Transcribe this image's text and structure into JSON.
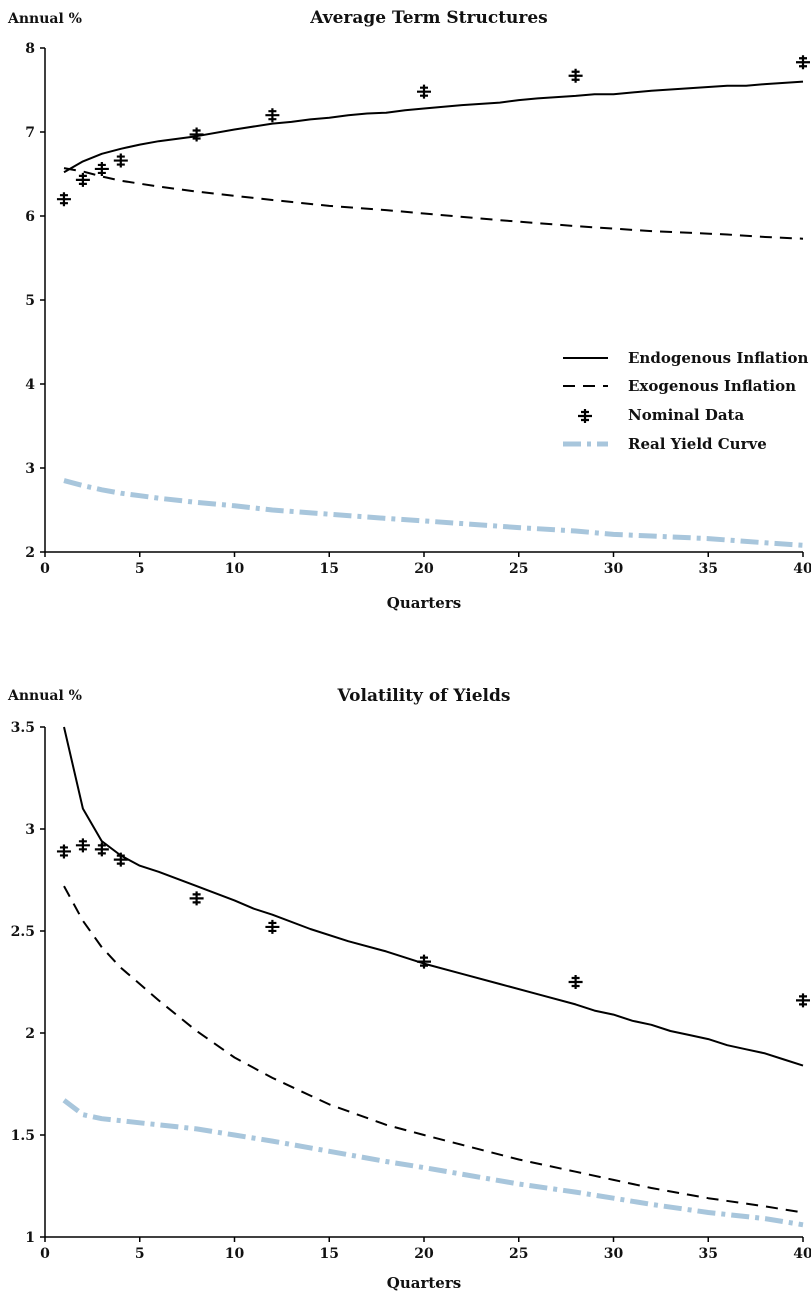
{
  "colors": {
    "ink": "#000000",
    "real_curve": "#a8c6dc"
  },
  "chart_data": [
    {
      "type": "line",
      "title": "Average Term Structures",
      "ylabel": "Annual %",
      "xlabel": "Quarters",
      "xlim": [
        0,
        40
      ],
      "ylim": [
        2,
        8
      ],
      "xticks": [
        "0",
        "5",
        "10",
        "15",
        "20",
        "25",
        "30",
        "35",
        "40"
      ],
      "yticks": [
        "2",
        "3",
        "4",
        "5",
        "6",
        "7",
        "8"
      ],
      "grid": false,
      "legend_position": "right",
      "series": [
        {
          "name": "Endogenous Inflation",
          "style": "solid",
          "x": [
            1,
            2,
            3,
            4,
            5,
            6,
            7,
            8,
            10,
            12,
            13,
            14,
            15,
            16,
            17,
            18,
            19,
            20,
            22,
            24,
            25,
            26,
            28,
            29,
            30,
            32,
            34,
            36,
            37,
            38,
            40
          ],
          "y": [
            6.52,
            6.65,
            6.74,
            6.8,
            6.85,
            6.89,
            6.92,
            6.95,
            7.03,
            7.1,
            7.12,
            7.15,
            7.17,
            7.2,
            7.22,
            7.23,
            7.26,
            7.28,
            7.32,
            7.35,
            7.38,
            7.4,
            7.43,
            7.45,
            7.45,
            7.49,
            7.52,
            7.55,
            7.55,
            7.57,
            7.6
          ]
        },
        {
          "name": "Exogenous Inflation",
          "style": "dashed",
          "x": [
            1,
            2,
            3,
            4,
            6,
            8,
            10,
            12,
            15,
            18,
            20,
            24,
            28,
            32,
            36,
            38,
            40
          ],
          "y": [
            6.57,
            6.53,
            6.47,
            6.42,
            6.35,
            6.29,
            6.24,
            6.19,
            6.12,
            6.07,
            6.03,
            5.95,
            5.88,
            5.82,
            5.78,
            5.75,
            5.73
          ]
        },
        {
          "name": "Nominal Data",
          "style": "markers",
          "x": [
            1,
            2,
            3,
            4,
            8,
            12,
            20,
            28,
            40
          ],
          "y": [
            6.2,
            6.43,
            6.56,
            6.66,
            6.97,
            7.2,
            7.48,
            7.67,
            7.83
          ]
        },
        {
          "name": "Real Yield Curve",
          "style": "dashdot",
          "x": [
            1,
            2,
            3,
            4,
            5,
            6,
            8,
            10,
            12,
            15,
            18,
            20,
            25,
            28,
            30,
            32,
            35,
            38,
            40
          ],
          "y": [
            2.85,
            2.79,
            2.74,
            2.7,
            2.67,
            2.64,
            2.59,
            2.55,
            2.5,
            2.45,
            2.4,
            2.37,
            2.29,
            2.25,
            2.21,
            2.19,
            2.16,
            2.11,
            2.08
          ]
        }
      ]
    },
    {
      "type": "line",
      "title": "Volatility of Yields",
      "ylabel": "Annual %",
      "xlabel": "Quarters",
      "xlim": [
        0,
        40
      ],
      "ylim": [
        1,
        3.5
      ],
      "xticks": [
        "0",
        "5",
        "10",
        "15",
        "20",
        "25",
        "30",
        "35",
        "40"
      ],
      "yticks": [
        "1",
        "1.5",
        "2",
        "2.5",
        "3",
        "3.5"
      ],
      "grid": false,
      "series": [
        {
          "style": "solid",
          "x": [
            1,
            2,
            3,
            4,
            5,
            6,
            8,
            10,
            11,
            12,
            14,
            16,
            18,
            20,
            22,
            24,
            26,
            28,
            29,
            30,
            31,
            32,
            33,
            34,
            35,
            36,
            37,
            38,
            39,
            40
          ],
          "y": [
            3.5,
            3.1,
            2.94,
            2.87,
            2.82,
            2.79,
            2.72,
            2.65,
            2.61,
            2.58,
            2.51,
            2.45,
            2.4,
            2.34,
            2.29,
            2.24,
            2.19,
            2.14,
            2.11,
            2.09,
            2.06,
            2.04,
            2.01,
            1.99,
            1.97,
            1.94,
            1.92,
            1.9,
            1.87,
            1.84
          ]
        },
        {
          "style": "dashed",
          "x": [
            1,
            2,
            3,
            4,
            5,
            6,
            8,
            10,
            12,
            15,
            18,
            20,
            25,
            28,
            30,
            32,
            35,
            38,
            40
          ],
          "y": [
            2.72,
            2.55,
            2.42,
            2.32,
            2.24,
            2.16,
            2.01,
            1.88,
            1.78,
            1.65,
            1.55,
            1.5,
            1.38,
            1.32,
            1.28,
            1.24,
            1.19,
            1.15,
            1.12
          ]
        },
        {
          "style": "markers",
          "x": [
            1,
            2,
            3,
            4,
            8,
            12,
            20,
            28,
            40
          ],
          "y": [
            2.89,
            2.92,
            2.9,
            2.85,
            2.66,
            2.52,
            2.35,
            2.25,
            2.16
          ]
        },
        {
          "style": "dashdot",
          "x": [
            1,
            2,
            3,
            4,
            5,
            6,
            8,
            10,
            12,
            15,
            18,
            20,
            25,
            28,
            30,
            32,
            35,
            38,
            40
          ],
          "y": [
            1.67,
            1.6,
            1.58,
            1.57,
            1.56,
            1.55,
            1.53,
            1.5,
            1.47,
            1.42,
            1.37,
            1.34,
            1.26,
            1.22,
            1.19,
            1.16,
            1.12,
            1.09,
            1.06
          ]
        }
      ]
    }
  ]
}
